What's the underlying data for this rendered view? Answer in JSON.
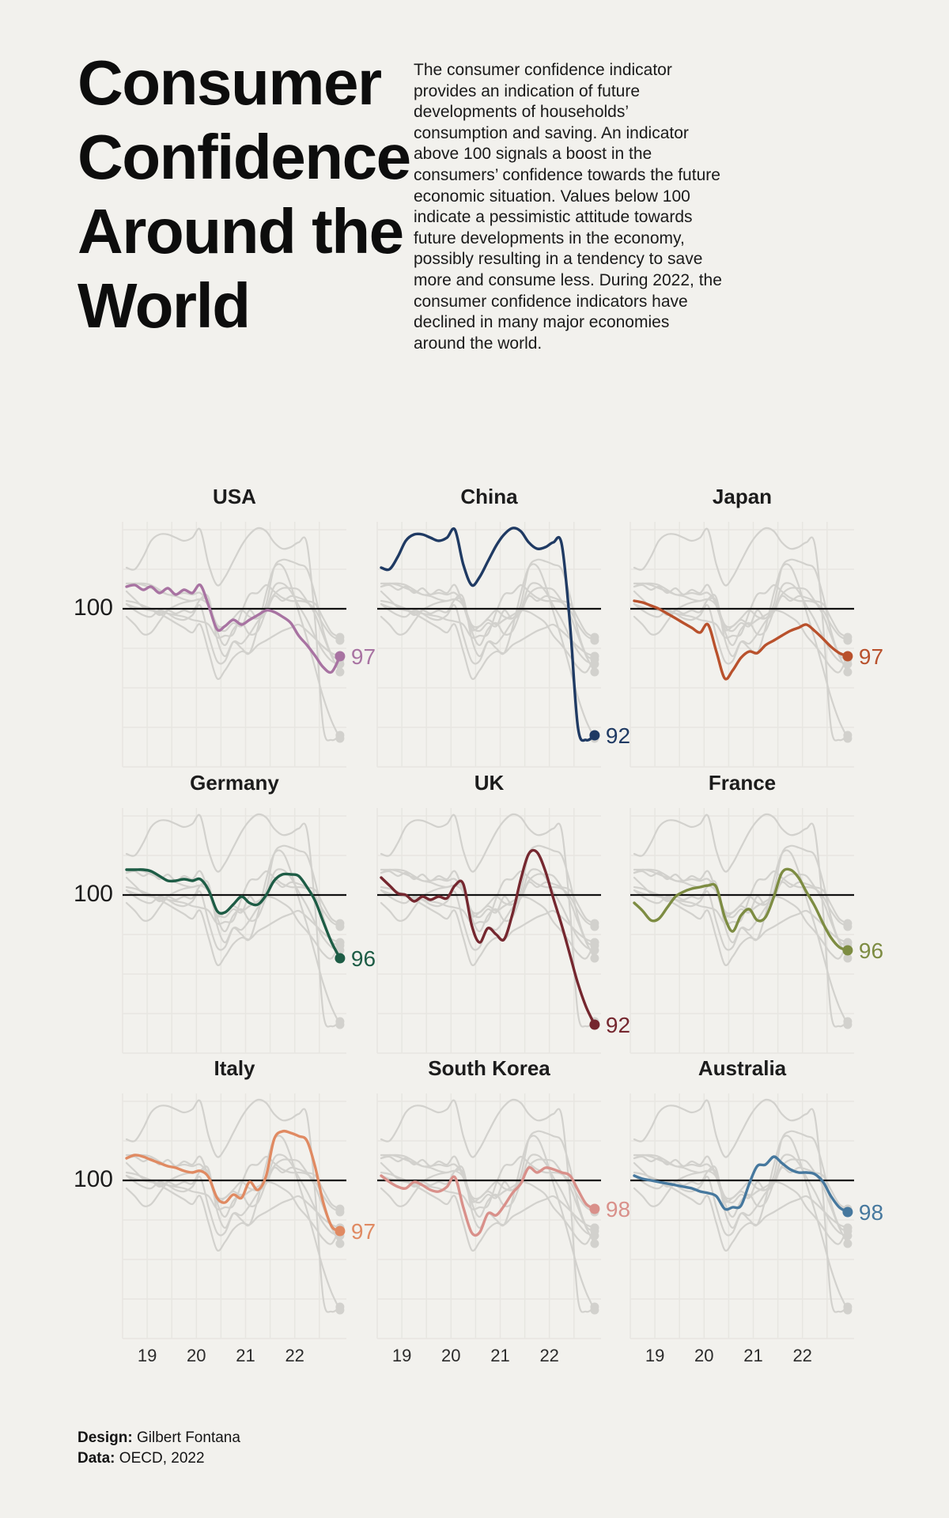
{
  "header": {
    "title_lines": [
      "Consumer",
      "Confidence",
      "Around the",
      "World"
    ],
    "intro": "The consumer confidence indicator provides an indication of future developments of households’ consumption and saving. An indicator above 100 signals a boost in the consumers’ confidence towards the future economic situation. Values below 100 indicate a pessimistic attitude towards future developments in the economy, possibly resulting in a tendency to save more and consume less. During 2022, the consumer confidence indicators have declined in many major economies around the world."
  },
  "footer": {
    "design_label": "Design:",
    "design_value": " Gilbert Fontana",
    "data_label": "Data:",
    "data_value": " OECD, 2022"
  },
  "colors": {
    "background": "#f2f1ed",
    "grid": "#e7e6e1",
    "background_line": "#d2d1cd",
    "reference_line": "#111111"
  },
  "chart_data": {
    "type": "line",
    "layout": "3x3 small multiples, one panel per highlighted country, all other countries shown gray in background",
    "panels": [
      "USA",
      "China",
      "Japan",
      "Germany",
      "UK",
      "France",
      "Italy",
      "South Korea",
      "Australia"
    ],
    "x_tick_labels": [
      "19",
      "20",
      "21",
      "22"
    ],
    "x_tick_years": [
      2019,
      2020,
      2021,
      2022
    ],
    "x_range": [
      2018.5,
      2023.05
    ],
    "y_range": [
      90.0,
      105.5
    ],
    "y_reference_line": 100,
    "y_reference_label": "100",
    "grid": true,
    "x": [
      2018.58,
      2018.75,
      2018.92,
      2019.08,
      2019.25,
      2019.42,
      2019.58,
      2019.75,
      2019.92,
      2020.08,
      2020.25,
      2020.42,
      2020.58,
      2020.75,
      2020.92,
      2021.08,
      2021.25,
      2021.42,
      2021.58,
      2021.75,
      2021.92,
      2022.08,
      2022.25,
      2022.42,
      2022.58,
      2022.75,
      2022.92
    ],
    "series": [
      {
        "name": "USA",
        "color": "#a873a2",
        "end_label": "97",
        "values": [
          101.4,
          101.5,
          101.2,
          101.4,
          101.0,
          101.3,
          100.9,
          101.2,
          101.0,
          101.5,
          100.2,
          98.7,
          98.9,
          99.3,
          99.0,
          99.3,
          99.6,
          99.9,
          99.8,
          99.5,
          99.1,
          98.3,
          97.7,
          97.0,
          96.3,
          96.0,
          97.0
        ]
      },
      {
        "name": "China",
        "color": "#1f3a63",
        "end_label": "92",
        "values": [
          102.6,
          102.5,
          103.3,
          104.3,
          104.7,
          104.7,
          104.5,
          104.3,
          104.5,
          105.0,
          102.8,
          101.5,
          102.0,
          103.0,
          104.0,
          104.7,
          105.1,
          104.9,
          104.2,
          103.8,
          103.9,
          104.2,
          104.1,
          99.0,
          92.5,
          91.7,
          92.0
        ]
      },
      {
        "name": "Japan",
        "color": "#b9512c",
        "end_label": "97",
        "values": [
          100.5,
          100.4,
          100.2,
          100.0,
          99.7,
          99.4,
          99.1,
          98.8,
          98.5,
          99.0,
          97.3,
          95.6,
          96.1,
          96.9,
          97.3,
          97.2,
          97.7,
          98.0,
          98.3,
          98.6,
          98.8,
          99.0,
          98.6,
          98.1,
          97.6,
          97.2,
          97.0
        ]
      },
      {
        "name": "Germany",
        "color": "#1d5c45",
        "end_label": "96",
        "values": [
          101.6,
          101.6,
          101.6,
          101.5,
          101.2,
          100.9,
          100.9,
          101.0,
          100.9,
          101.0,
          100.3,
          99.0,
          98.9,
          99.4,
          99.9,
          99.5,
          99.4,
          100.0,
          100.9,
          101.3,
          101.3,
          101.2,
          100.5,
          99.6,
          98.3,
          97.0,
          96.0
        ]
      },
      {
        "name": "UK",
        "color": "#75272f",
        "end_label": "92",
        "values": [
          101.1,
          100.6,
          100.1,
          100.0,
          99.6,
          99.9,
          99.7,
          99.9,
          99.8,
          100.6,
          100.7,
          98.1,
          97.0,
          97.9,
          97.5,
          97.2,
          98.8,
          101.0,
          102.6,
          102.7,
          101.5,
          99.8,
          98.1,
          96.2,
          94.4,
          92.9,
          91.8
        ]
      },
      {
        "name": "France",
        "color": "#7d8c42",
        "end_label": "96",
        "values": [
          99.5,
          99.0,
          98.4,
          98.5,
          99.2,
          99.9,
          100.2,
          100.4,
          100.5,
          100.6,
          100.5,
          98.6,
          97.7,
          98.7,
          99.1,
          98.4,
          98.6,
          99.9,
          101.4,
          101.6,
          101.1,
          100.2,
          99.3,
          98.2,
          97.3,
          96.7,
          96.5
        ]
      },
      {
        "name": "Italy",
        "color": "#e08a62",
        "end_label": "97",
        "values": [
          101.4,
          101.6,
          101.5,
          101.3,
          101.1,
          100.9,
          100.8,
          100.6,
          100.5,
          100.6,
          100.2,
          98.9,
          98.6,
          99.1,
          98.9,
          99.9,
          99.4,
          100.3,
          102.6,
          103.1,
          103.0,
          102.8,
          102.5,
          100.8,
          98.6,
          97.1,
          96.8
        ]
      },
      {
        "name": "South Korea",
        "color": "#d9908a",
        "end_label": "98",
        "values": [
          100.3,
          99.9,
          99.6,
          99.5,
          99.9,
          99.7,
          99.4,
          99.3,
          99.6,
          100.2,
          98.3,
          96.7,
          96.7,
          97.9,
          97.8,
          98.4,
          99.2,
          99.8,
          100.8,
          100.5,
          100.8,
          100.7,
          100.5,
          100.3,
          99.4,
          98.5,
          98.2
        ]
      },
      {
        "name": "Australia",
        "color": "#46789e",
        "end_label": "98",
        "values": [
          100.3,
          100.1,
          100.0,
          99.9,
          99.8,
          99.7,
          99.6,
          99.5,
          99.3,
          99.2,
          99.0,
          98.2,
          98.3,
          98.4,
          99.8,
          100.9,
          101.0,
          101.5,
          101.1,
          100.7,
          100.5,
          100.5,
          100.4,
          99.9,
          99.0,
          98.3,
          98.0
        ]
      }
    ]
  }
}
